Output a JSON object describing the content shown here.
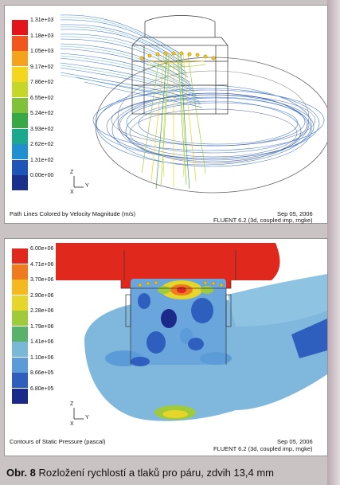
{
  "panel_top": {
    "colorbar_labels": [
      "1.31e+03",
      "1.18e+03",
      "1.05e+03",
      "9.17e+02",
      "7.86e+02",
      "6.55e+02",
      "5.24e+02",
      "3.93e+02",
      "2.62e+02",
      "1.31e+02",
      "0.00e+00"
    ],
    "colorbar_colors": [
      "#e3141b",
      "#f2561c",
      "#f5a21c",
      "#f4d61e",
      "#c5d82a",
      "#7fc23a",
      "#38a847",
      "#1aa98c",
      "#1f8fd0",
      "#1f55b8",
      "#1b2f8c"
    ],
    "caption_left": "Path Lines Colored by Velocity Magnitude (m/s)",
    "date": "Sep 05, 2006",
    "solver": "FLUENT 6.2 (3d, coupled imp, rngke)",
    "axis_z": "Z",
    "axis_y": "Y",
    "axis_x": "X"
  },
  "panel_bottom": {
    "colorbar_labels": [
      "6.00e+06",
      "4.71e+06",
      "3.70e+06",
      "2.90e+06",
      "2.28e+06",
      "1.79e+06",
      "1.41e+06",
      "1.10e+06",
      "8.66e+05",
      "6.80e+05"
    ],
    "colorbar_colors": [
      "#e0281c",
      "#f07a1e",
      "#f5b81e",
      "#e6d52a",
      "#9fca3a",
      "#58b26a",
      "#79b9d7",
      "#5a9bd8",
      "#2f5fbe",
      "#1b2a8a"
    ],
    "caption_left": "Contours of Static Pressure (pascal)",
    "date": "Sep 05, 2006",
    "solver": "FLUENT 6.2 (3d, coupled imp, rngke)",
    "axis_z": "Z",
    "axis_y": "Y",
    "axis_x": "X"
  },
  "figure_caption": {
    "label": "Obr. 8",
    "text": "Rozložení rychlostí a tlaků pro páru, zdvih 13,4 mm"
  }
}
